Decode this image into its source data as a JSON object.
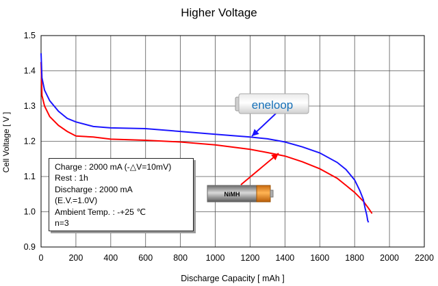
{
  "chart_data": {
    "type": "line",
    "title": "Higher Voltage",
    "xlabel": "Discharge Capacity [ mAh ]",
    "ylabel": "Cell Voltage [ V ]",
    "xlim": [
      0,
      2200
    ],
    "ylim": [
      0.9,
      1.5
    ],
    "x_ticks": [
      "0",
      "200",
      "400",
      "600",
      "800",
      "1000",
      "1200",
      "1400",
      "1600",
      "1800",
      "2000",
      "2200"
    ],
    "y_ticks": [
      "0.9",
      "1.0",
      "1.1",
      "1.2",
      "1.3",
      "1.4",
      "1.5"
    ],
    "grid": true,
    "series": [
      {
        "name": "eneloop",
        "color": "#1a14ff",
        "x": [
          0,
          5,
          20,
          50,
          100,
          150,
          200,
          300,
          400,
          600,
          800,
          1000,
          1200,
          1300,
          1400,
          1500,
          1600,
          1700,
          1750,
          1800,
          1830,
          1850,
          1860,
          1870,
          1875,
          1880
        ],
        "y": [
          1.45,
          1.38,
          1.345,
          1.315,
          1.285,
          1.265,
          1.255,
          1.242,
          1.238,
          1.236,
          1.228,
          1.22,
          1.212,
          1.207,
          1.198,
          1.184,
          1.167,
          1.14,
          1.12,
          1.09,
          1.06,
          1.035,
          1.01,
          0.99,
          0.975,
          0.97
        ]
      },
      {
        "name": "NiMH",
        "color": "#ff0000",
        "x": [
          0,
          5,
          20,
          50,
          100,
          150,
          200,
          300,
          400,
          600,
          800,
          1000,
          1200,
          1300,
          1400,
          1500,
          1600,
          1700,
          1750,
          1800,
          1850,
          1880,
          1900
        ],
        "y": [
          1.425,
          1.33,
          1.3,
          1.27,
          1.245,
          1.228,
          1.215,
          1.212,
          1.206,
          1.203,
          1.198,
          1.19,
          1.177,
          1.168,
          1.158,
          1.142,
          1.122,
          1.095,
          1.075,
          1.055,
          1.03,
          1.01,
          0.995
        ]
      }
    ],
    "annotations": {
      "eneloop_label": "eneloop",
      "nimh_label": "NiMH"
    }
  },
  "conditions": {
    "lines": [
      "Charge : 2000 mA (-△V=10mV)",
      "Rest : 1h",
      "Discharge : 2000 mA",
      "(E.V.=1.0V)",
      "Ambient Temp. : -+25 ℃",
      "n=3"
    ]
  },
  "colors": {
    "grid": "#555555",
    "axis": "#000000",
    "eneloop_line": "#1a14ff",
    "nimh_line": "#ff0000",
    "nimh_cap": "#ff8c1a"
  }
}
